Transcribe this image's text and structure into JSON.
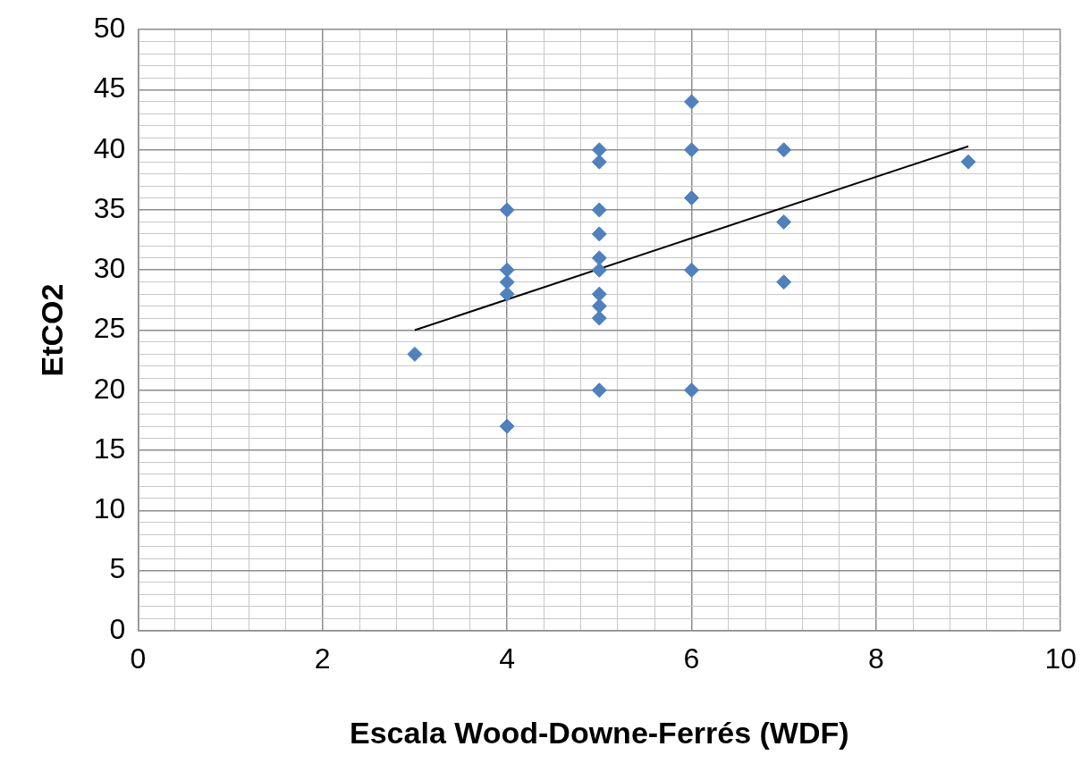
{
  "chart_data": {
    "type": "scatter",
    "xlabel": "Escala Wood-Downe-Ferrés (WDF)",
    "ylabel": "EtCO2",
    "xlim": [
      0,
      10
    ],
    "xticks": [
      0,
      {
        "value": 0.4,
        "label": null
      },
      {
        "value": 0.8,
        "label": null
      },
      {
        "value": 1.2,
        "label": null
      },
      {
        "value": 1.6,
        "label": null
      },
      2,
      {
        "value": 2.4,
        "label": null
      },
      {
        "value": 2.8,
        "label": null
      },
      {
        "value": 3.2,
        "label": null
      },
      {
        "value": 3.6,
        "label": null
      },
      4,
      {
        "value": 4.4,
        "label": null
      },
      {
        "value": 4.8,
        "label": null
      },
      {
        "value": 5.2,
        "label": null
      },
      {
        "value": 5.6,
        "label": null
      },
      6,
      {
        "value": 6.4,
        "label": null
      },
      {
        "value": 6.8,
        "label": null
      },
      {
        "value": 7.2,
        "label": null
      },
      {
        "value": 7.6,
        "label": null
      },
      8,
      {
        "value": 8.4,
        "label": null
      },
      {
        "value": 8.8,
        "label": null
      },
      {
        "value": 9.2,
        "label": null
      },
      {
        "value": 9.6,
        "label": null
      },
      10
    ],
    "ylim": [
      0,
      50
    ],
    "yticks": [
      0,
      {
        "value": 1,
        "label": null
      },
      {
        "value": 2,
        "label": null
      },
      {
        "value": 3,
        "label": null
      },
      {
        "value": 4,
        "label": null
      },
      5,
      {
        "value": 6,
        "label": null
      },
      {
        "value": 7,
        "label": null
      },
      {
        "value": 8,
        "label": null
      },
      {
        "value": 9,
        "label": null
      },
      10,
      {
        "value": 11,
        "label": null
      },
      {
        "value": 12,
        "label": null
      },
      {
        "value": 13,
        "label": null
      },
      {
        "value": 14,
        "label": null
      },
      15,
      {
        "value": 16,
        "label": null
      },
      {
        "value": 17,
        "label": null
      },
      {
        "value": 18,
        "label": null
      },
      {
        "value": 19,
        "label": null
      },
      20,
      {
        "value": 21,
        "label": null
      },
      {
        "value": 22,
        "label": null
      },
      {
        "value": 23,
        "label": null
      },
      {
        "value": 24,
        "label": null
      },
      25,
      {
        "value": 26,
        "label": null
      },
      {
        "value": 27,
        "label": null
      },
      {
        "value": 28,
        "label": null
      },
      {
        "value": 29,
        "label": null
      },
      30,
      {
        "value": 31,
        "label": null
      },
      {
        "value": 32,
        "label": null
      },
      {
        "value": 33,
        "label": null
      },
      {
        "value": 34,
        "label": null
      },
      35,
      {
        "value": 36,
        "label": null
      },
      {
        "value": 37,
        "label": null
      },
      {
        "value": 38,
        "label": null
      },
      {
        "value": 39,
        "label": null
      },
      40,
      {
        "value": 41,
        "label": null
      },
      {
        "value": 42,
        "label": null
      },
      {
        "value": 43,
        "label": null
      },
      {
        "value": 44,
        "label": null
      },
      45,
      {
        "value": 46,
        "label": null
      },
      {
        "value": 47,
        "label": null
      },
      {
        "value": 48,
        "label": null
      },
      {
        "value": 49,
        "label": null
      },
      50
    ],
    "grid": true,
    "legend": false,
    "marker": "diamond",
    "series": [
      {
        "type": "scatter",
        "color": "#4f81bd",
        "x": [
          3,
          4,
          4,
          4,
          4,
          4,
          5,
          5,
          5,
          5,
          5,
          5,
          5,
          5,
          5,
          5,
          6,
          6,
          6,
          6,
          6,
          7,
          7,
          7,
          9
        ],
        "values": [
          23,
          35,
          30,
          29,
          28,
          17,
          40,
          39,
          35,
          33,
          31,
          30,
          28,
          27,
          26,
          20,
          44,
          40,
          36,
          30,
          20,
          40,
          34,
          29,
          39
        ]
      },
      {
        "type": "line",
        "color": "#000000",
        "marker": "none",
        "line_style": "solid",
        "x": [
          3,
          9
        ],
        "values": [
          25,
          40.3
        ]
      }
    ]
  }
}
